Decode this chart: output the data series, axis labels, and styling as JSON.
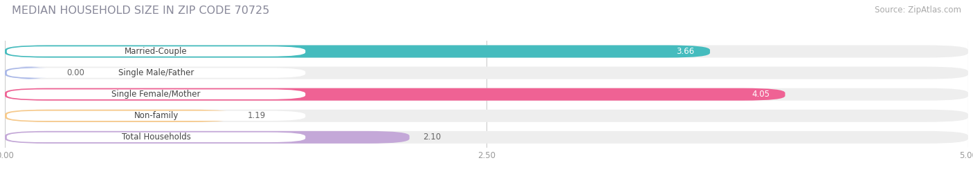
{
  "title": "MEDIAN HOUSEHOLD SIZE IN ZIP CODE 70725",
  "source": "Source: ZipAtlas.com",
  "categories": [
    "Married-Couple",
    "Single Male/Father",
    "Single Female/Mother",
    "Non-family",
    "Total Households"
  ],
  "values": [
    3.66,
    0.0,
    4.05,
    1.19,
    2.1
  ],
  "bar_colors": [
    "#45bcbe",
    "#aab8e8",
    "#ef6294",
    "#f7c98a",
    "#c4a8d8"
  ],
  "bar_bg_color": "#eeeeee",
  "xlim": [
    0,
    5.0
  ],
  "xticks": [
    0.0,
    2.5,
    5.0
  ],
  "xtick_labels": [
    "0.00",
    "2.50",
    "5.00"
  ],
  "background_color": "#ffffff",
  "title_color": "#888899",
  "title_fontsize": 11.5,
  "source_fontsize": 8.5,
  "label_fontsize": 8.5,
  "value_fontsize": 8.5,
  "bar_height": 0.58,
  "bar_gap": 0.12
}
